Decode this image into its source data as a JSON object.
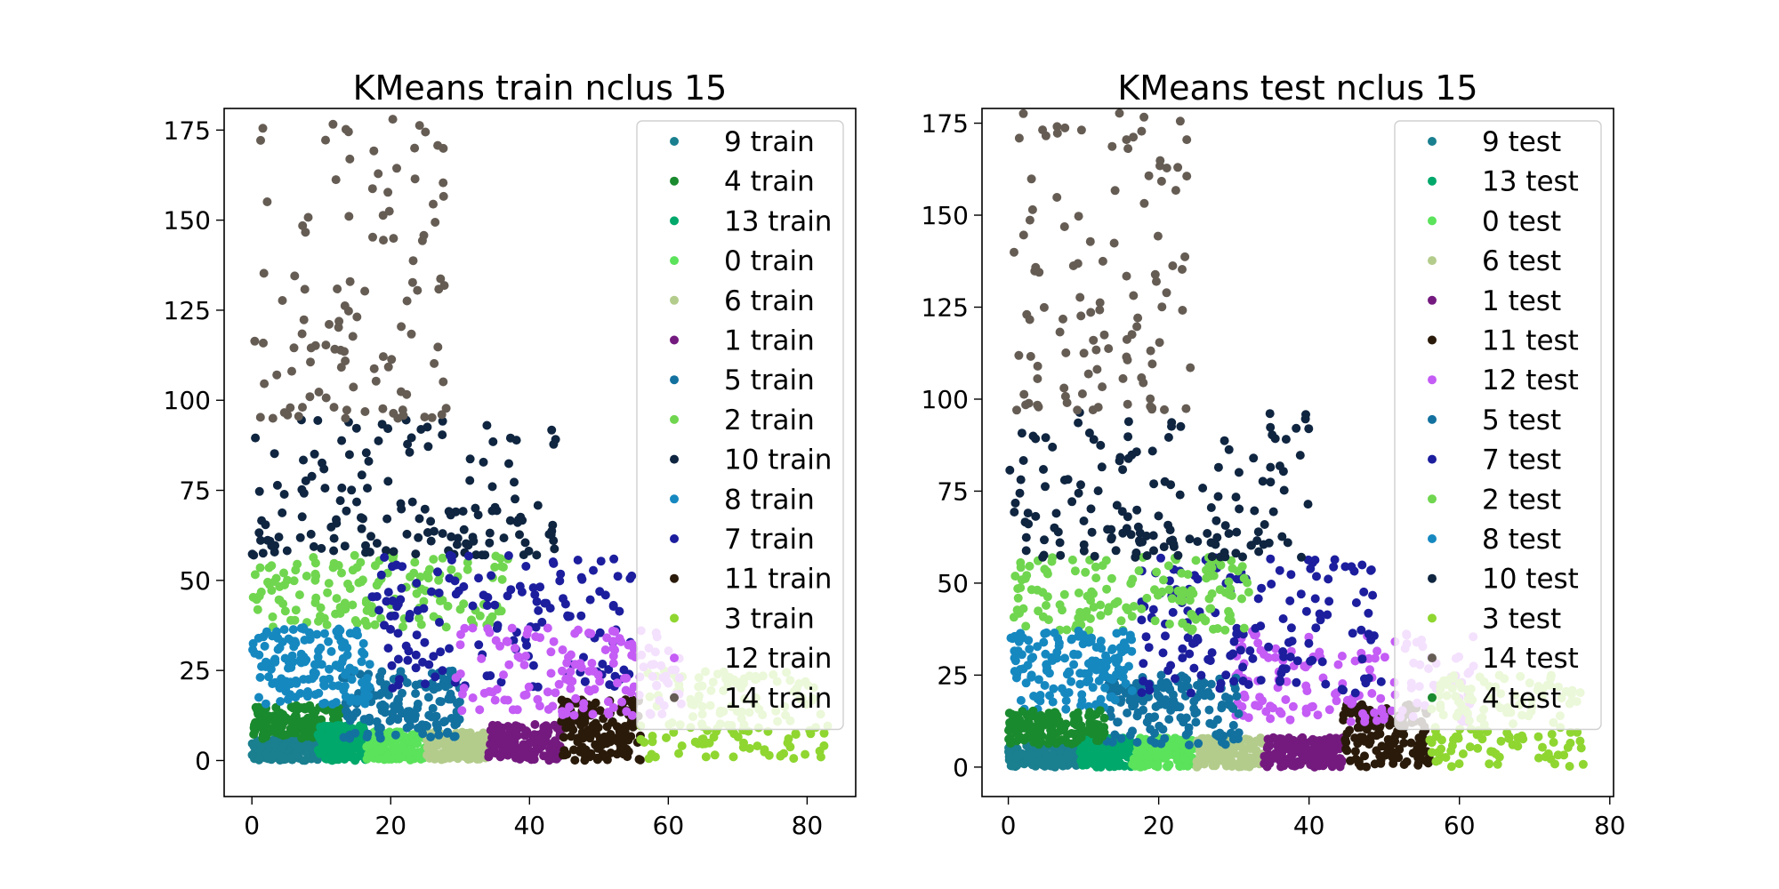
{
  "chart_data": [
    {
      "type": "scatter",
      "title": "KMeans train nclus 15",
      "xlabel": "",
      "ylabel": "",
      "xlim": [
        -4,
        87
      ],
      "ylim": [
        -10,
        181
      ],
      "xticks": [
        0,
        20,
        40,
        60,
        80
      ],
      "yticks": [
        0,
        25,
        50,
        75,
        100,
        125,
        150,
        175
      ],
      "grid": false,
      "legend_position": "top-right",
      "series": [
        {
          "name": "9 train",
          "color": "#1a7f8f",
          "region": {
            "x": [
              0,
              9.5
            ],
            "y": [
              0,
              6
            ]
          }
        },
        {
          "name": "4 train",
          "color": "#1a8a2e",
          "region": {
            "x": [
              0,
              13
            ],
            "y": [
              6,
              15.5
            ]
          }
        },
        {
          "name": "13 train",
          "color": "#00a86b",
          "region": {
            "x": [
              9.5,
              16.5
            ],
            "y": [
              0,
              10
            ]
          }
        },
        {
          "name": "0 train",
          "color": "#5be35b",
          "region": {
            "x": [
              16.5,
              25
            ],
            "y": [
              0,
              8
            ]
          }
        },
        {
          "name": "6 train",
          "color": "#b3cc8c",
          "region": {
            "x": [
              25,
              34
            ],
            "y": [
              0,
              8
            ]
          }
        },
        {
          "name": "1 train",
          "color": "#741a7f",
          "region": {
            "x": [
              34,
              44.5
            ],
            "y": [
              0,
              10
            ]
          }
        },
        {
          "name": "5 train",
          "color": "#13719f",
          "region": {
            "x": [
              13,
              30
            ],
            "y": [
              6,
              25
            ]
          }
        },
        {
          "name": "2 train",
          "color": "#70d64f",
          "region": {
            "x": [
              0,
              37
            ],
            "y": [
              37,
              57
            ]
          }
        },
        {
          "name": "10 train",
          "color": "#0f2540",
          "region": {
            "x": [
              0,
              44
            ],
            "y": [
              57,
              95
            ]
          }
        },
        {
          "name": "8 train",
          "color": "#1688c0",
          "region": {
            "x": [
              0,
              17
            ],
            "y": [
              15.5,
              37
            ]
          }
        },
        {
          "name": "7 train",
          "color": "#1c1e9e",
          "region": {
            "x": [
              17,
              55
            ],
            "y": [
              20,
              57
            ]
          }
        },
        {
          "name": "11 train",
          "color": "#2a1a0a",
          "region": {
            "x": [
              44.5,
              56
            ],
            "y": [
              0,
              17
            ]
          }
        },
        {
          "name": "3 train",
          "color": "#8fd631",
          "region": {
            "x": [
              56,
              83
            ],
            "y": [
              0,
              25
            ]
          }
        },
        {
          "name": "12 train",
          "color": "#c45cf5",
          "region": {
            "x": [
              29,
              62
            ],
            "y": [
              12,
              37
            ]
          }
        },
        {
          "name": "14 train",
          "color": "#655c54",
          "region": {
            "x": [
              0,
              28
            ],
            "y": [
              95,
              180
            ]
          }
        }
      ]
    },
    {
      "type": "scatter",
      "title": "KMeans test nclus 15",
      "xlabel": "",
      "ylabel": "",
      "xlim": [
        -3.5,
        80.5
      ],
      "ylim": [
        -8,
        179
      ],
      "xticks": [
        0,
        20,
        40,
        60,
        80
      ],
      "yticks": [
        0,
        25,
        50,
        75,
        100,
        125,
        150,
        175
      ],
      "grid": false,
      "legend_position": "top-right",
      "series": [
        {
          "name": "9 test",
          "color": "#1a7f8f",
          "region": {
            "x": [
              0,
              9.5
            ],
            "y": [
              0,
              6
            ]
          }
        },
        {
          "name": "13 test",
          "color": "#00a86b",
          "region": {
            "x": [
              9.5,
              16.5
            ],
            "y": [
              0,
              8
            ]
          }
        },
        {
          "name": "0 test",
          "color": "#5be35b",
          "region": {
            "x": [
              16.5,
              25
            ],
            "y": [
              0,
              8
            ]
          }
        },
        {
          "name": "6 test",
          "color": "#b3cc8c",
          "region": {
            "x": [
              25,
              34
            ],
            "y": [
              0,
              8
            ]
          }
        },
        {
          "name": "1 test",
          "color": "#741a7f",
          "region": {
            "x": [
              34,
              44.5
            ],
            "y": [
              0,
              8
            ]
          }
        },
        {
          "name": "11 test",
          "color": "#2a1a0a",
          "region": {
            "x": [
              44.5,
              56
            ],
            "y": [
              0,
              17
            ]
          }
        },
        {
          "name": "12 test",
          "color": "#c45cf5",
          "region": {
            "x": [
              30,
              62
            ],
            "y": [
              12,
              37
            ]
          }
        },
        {
          "name": "5 test",
          "color": "#13719f",
          "region": {
            "x": [
              13,
              31
            ],
            "y": [
              6,
              25
            ]
          }
        },
        {
          "name": "7 test",
          "color": "#1c1e9e",
          "region": {
            "x": [
              17,
              50
            ],
            "y": [
              20,
              57
            ]
          }
        },
        {
          "name": "2 test",
          "color": "#70d64f",
          "region": {
            "x": [
              0,
              32
            ],
            "y": [
              37,
              57
            ]
          }
        },
        {
          "name": "8 test",
          "color": "#1688c0",
          "region": {
            "x": [
              0,
              17
            ],
            "y": [
              15.5,
              37
            ]
          }
        },
        {
          "name": "10 test",
          "color": "#0f2540",
          "region": {
            "x": [
              0,
              40
            ],
            "y": [
              57,
              97
            ]
          }
        },
        {
          "name": "3 test",
          "color": "#8fd631",
          "region": {
            "x": [
              56,
              77
            ],
            "y": [
              0,
              25
            ]
          }
        },
        {
          "name": "14 test",
          "color": "#655c54",
          "region": {
            "x": [
              0,
              25
            ],
            "y": [
              97,
              178
            ]
          }
        },
        {
          "name": "4 test",
          "color": "#1a8a2e",
          "region": {
            "x": [
              0,
              13
            ],
            "y": [
              6,
              15.5
            ]
          }
        }
      ]
    }
  ]
}
